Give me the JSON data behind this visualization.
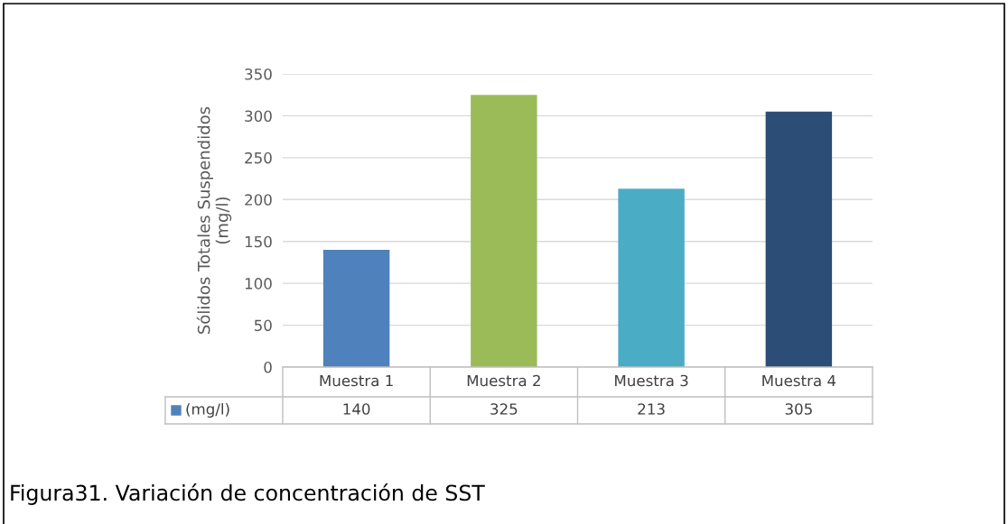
{
  "chart_data": {
    "type": "bar",
    "categories": [
      "Muestra 1",
      "Muestra 2",
      "Muestra 3",
      "Muestra 4"
    ],
    "series": [
      {
        "name": "(mg/l)",
        "color": "#4f81bd",
        "colors": [
          "#4f81bd",
          "#9bbb59",
          "#4bacc6",
          "#2c4d75"
        ],
        "values": [
          140,
          325,
          213,
          305
        ]
      }
    ],
    "ylabel": "Sólidos Totales Suspendidos\n(mg/l)",
    "ylim": [
      0,
      350
    ],
    "yticks": [
      0,
      50,
      100,
      150,
      200,
      250,
      300,
      350
    ],
    "grid": "y",
    "data_labels": true,
    "annotations": [
      "Figura31. Variación de concentración de SST"
    ]
  }
}
